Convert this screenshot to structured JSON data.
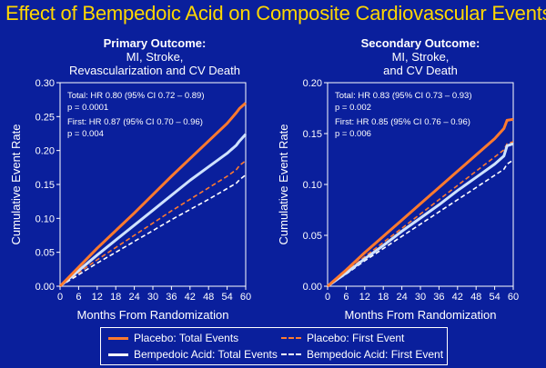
{
  "title": "Effect of Bempedoic Acid on Composite Cardiovascular Events",
  "colors": {
    "background": "#0a1f9c",
    "plot_bg": "#0a1f9c",
    "title": "#ffd700",
    "placebo": "#ff7a2e",
    "bempedoic": "#ffffff",
    "bempedoic_total": "#cfe2ff"
  },
  "legend": {
    "items": [
      {
        "label": "Placebo: Total Events",
        "color": "#ff7a2e",
        "dash": false
      },
      {
        "label": "Placebo: First Event",
        "color": "#ff7a2e",
        "dash": true
      },
      {
        "label": "Bempedoic Acid: Total Events",
        "color": "#ffffff",
        "dash": false
      },
      {
        "label": "Bempedoic Acid: First Event",
        "color": "#ffffff",
        "dash": true
      }
    ]
  },
  "chart_data": [
    {
      "type": "line",
      "title_main": "Primary Outcome:",
      "title_lines": [
        "MI, Stroke,",
        "Revascularization and CV Death"
      ],
      "xlabel": "Months From Randomization",
      "ylabel": "Cumulative Event Rate",
      "xlim": [
        0,
        60
      ],
      "ylim": [
        0,
        0.3
      ],
      "xticks": [
        "0",
        "6",
        "12",
        "18",
        "24",
        "30",
        "36",
        "42",
        "48",
        "54",
        "60"
      ],
      "yticks": [
        "0.00",
        "0.05",
        "0.10",
        "0.15",
        "0.20",
        "0.25",
        "0.30"
      ],
      "annotations": [
        "Total: HR 0.80 (95% CI 0.72 – 0.89)",
        "p = 0.0001",
        "First: HR 0.87 (95% CI 0.70 – 0.96)",
        "p = 0.004"
      ],
      "x": [
        0,
        6,
        12,
        18,
        24,
        30,
        36,
        42,
        48,
        54,
        57,
        58,
        60
      ],
      "series": [
        {
          "name": "Placebo: Total Events",
          "values": [
            0,
            0.028,
            0.056,
            0.082,
            0.108,
            0.135,
            0.162,
            0.188,
            0.214,
            0.24,
            0.256,
            0.262,
            0.27
          ]
        },
        {
          "name": "Bempedoic Acid: Total Events",
          "values": [
            0,
            0.023,
            0.046,
            0.068,
            0.09,
            0.112,
            0.134,
            0.156,
            0.176,
            0.196,
            0.208,
            0.214,
            0.224
          ]
        },
        {
          "name": "Placebo: First Event",
          "values": [
            0,
            0.02,
            0.039,
            0.057,
            0.075,
            0.093,
            0.111,
            0.128,
            0.145,
            0.162,
            0.172,
            0.178,
            0.185
          ]
        },
        {
          "name": "Bempedoic Acid: First Event",
          "values": [
            0,
            0.017,
            0.034,
            0.05,
            0.066,
            0.082,
            0.098,
            0.113,
            0.128,
            0.144,
            0.152,
            0.157,
            0.164
          ]
        }
      ]
    },
    {
      "type": "line",
      "title_main": "Secondary Outcome:",
      "title_lines": [
        "MI, Stroke,",
        "and CV Death"
      ],
      "xlabel": "Months From Randomization",
      "ylabel": "Cumulative Event Rate",
      "xlim": [
        0,
        60
      ],
      "ylim": [
        0,
        0.2
      ],
      "xticks": [
        "0",
        "6",
        "12",
        "18",
        "24",
        "30",
        "36",
        "42",
        "48",
        "54",
        "60"
      ],
      "yticks": [
        "0.00",
        "0.05",
        "0.10",
        "0.15",
        "0.20"
      ],
      "annotations": [
        "Total: HR 0.83 (95% CI 0.73 – 0.93)",
        "p = 0.002",
        "First: HR 0.85 (95% CI 0.76 – 0.96)",
        "p = 0.006"
      ],
      "x": [
        0,
        6,
        12,
        18,
        24,
        30,
        36,
        42,
        48,
        54,
        57,
        58,
        60
      ],
      "series": [
        {
          "name": "Placebo: Total Events",
          "values": [
            0,
            0.016,
            0.033,
            0.049,
            0.065,
            0.081,
            0.097,
            0.113,
            0.129,
            0.145,
            0.155,
            0.163,
            0.164
          ]
        },
        {
          "name": "Bempedoic Acid: Total Events",
          "values": [
            0,
            0.013,
            0.027,
            0.04,
            0.054,
            0.067,
            0.08,
            0.094,
            0.107,
            0.12,
            0.128,
            0.138,
            0.14
          ]
        },
        {
          "name": "Placebo: First Event",
          "values": [
            0,
            0.014,
            0.029,
            0.043,
            0.057,
            0.071,
            0.085,
            0.099,
            0.113,
            0.127,
            0.134,
            0.14,
            0.142
          ]
        },
        {
          "name": "Bempedoic Acid: First Event",
          "values": [
            0,
            0.012,
            0.025,
            0.037,
            0.049,
            0.061,
            0.073,
            0.085,
            0.097,
            0.109,
            0.115,
            0.12,
            0.124
          ]
        }
      ]
    }
  ]
}
